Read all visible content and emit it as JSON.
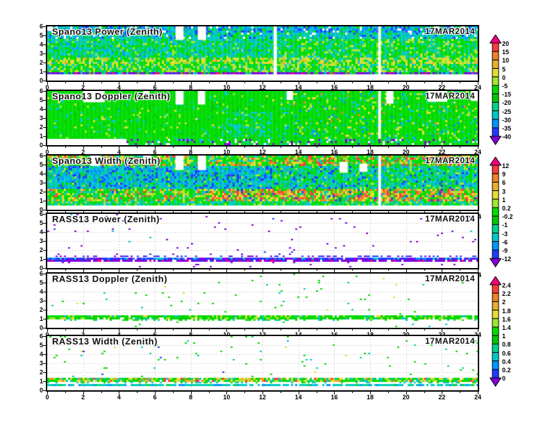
{
  "figure": {
    "background": "#ffffff"
  },
  "palette": {
    "magenta": "#ef0082",
    "red": "#fa3c3c",
    "orange": "#f08228",
    "amber": "#e6af2d",
    "yellow": "#e6dc32",
    "yellowgreen": "#a0e632",
    "green": "#00dc00",
    "green2": "#00c800",
    "aqua": "#00d28c",
    "cyan": "#00c8c8",
    "azure": "#0096ff",
    "blue": "#1e3cff",
    "purple": "#8200dc",
    "white": "#ffffff",
    "grid": "#b4b4b4",
    "axis": "#000000"
  },
  "chart_data": {
    "type": "heatmap",
    "x_axis": {
      "range": [
        0,
        24
      ],
      "tick_step": 2,
      "minor_tick_step": 1,
      "tick_labels": [
        "0",
        "2",
        "4",
        "6",
        "8",
        "10",
        "12",
        "14",
        "16",
        "18",
        "20",
        "22",
        "24"
      ]
    },
    "y_axis": {
      "range": [
        0,
        6
      ],
      "tick_step": 1,
      "tick_labels": [
        "0",
        "1",
        "2",
        "3",
        "4",
        "5",
        "6"
      ]
    },
    "panels": [
      {
        "title": "Spano13 Power (Zenith)",
        "date": "17MAR2014",
        "seed": 11,
        "background": "filled",
        "bands": [
          {
            "y0": 5.25,
            "y1": 6.0,
            "mix": {
              "azure": 0.22,
              "blue": 0.18,
              "cyan": 0.28,
              "green": 0.16,
              "white": 0.08,
              "aqua": 0.08
            }
          },
          {
            "y0": 4.55,
            "y1": 5.25,
            "mix": {
              "cyan": 0.42,
              "aqua": 0.18,
              "green": 0.18,
              "azure": 0.12,
              "blue": 0.05,
              "white": 0.05
            }
          },
          {
            "y0": 2.5,
            "y1": 4.55,
            "mix": {
              "cyan": 0.36,
              "green": 0.34,
              "aqua": 0.18,
              "yellowgreen": 0.06,
              "azure": 0.06
            },
            "xSplit": 13,
            "mixRight": {
              "green": 0.52,
              "cyan": 0.22,
              "aqua": 0.12,
              "yellowgreen": 0.1,
              "yellow": 0.04
            }
          },
          {
            "y0": 1.85,
            "y1": 2.5,
            "mix": {
              "green": 0.34,
              "yellow": 0.26,
              "yellowgreen": 0.22,
              "cyan": 0.12,
              "amber": 0.06
            }
          },
          {
            "y0": 0.85,
            "y1": 1.85,
            "mix": {
              "green": 0.42,
              "cyan": 0.2,
              "yellowgreen": 0.22,
              "yellow": 0.1,
              "aqua": 0.06
            }
          },
          {
            "y0": 0.58,
            "y1": 0.85,
            "mix": {
              "purple": 0.5,
              "magenta": 0.12,
              "blue": 0.12,
              "green": 0.16,
              "cyan": 0.1
            }
          },
          {
            "y0": 0.0,
            "y1": 0.58,
            "mix": {
              "white": 1
            }
          }
        ],
        "white_rects": [
          [
            7.15,
            7.6,
            4.5,
            6
          ],
          [
            8.4,
            8.85,
            4.5,
            6
          ],
          [
            12.62,
            12.8,
            0.58,
            6
          ],
          [
            18.45,
            18.6,
            0.58,
            6
          ],
          [
            0,
            0.3,
            5.5,
            6
          ],
          [
            21.55,
            21.85,
            5.5,
            6
          ],
          [
            23.05,
            23.3,
            5.55,
            6
          ]
        ]
      },
      {
        "title": "Spano13 Doppler (Zenith)",
        "date": "17MAR2014",
        "seed": 22,
        "background": "filled",
        "bands": [
          {
            "y0": 1.0,
            "y1": 3.6,
            "x0": 9.8,
            "x1": 12.6,
            "mix": {
              "green": 0.6,
              "cyan": 0.25,
              "aqua": 0.1,
              "yellowgreen": 0.05
            }
          },
          {
            "y0": 0.7,
            "y1": 6.0,
            "mix": {
              "green": 0.86,
              "green2": 0.06,
              "cyan": 0.04,
              "yellowgreen": 0.02,
              "yellow": 0.01,
              "aqua": 0.01
            },
            "xSplit": 13,
            "mixRight": {
              "green": 0.74,
              "green2": 0.08,
              "cyan": 0.07,
              "yellow": 0.04,
              "yellowgreen": 0.04,
              "orange": 0.01,
              "azure": 0.02
            }
          },
          {
            "y0": 0.0,
            "y1": 0.7,
            "x0": 0,
            "x1": 4.4,
            "mix": {
              "white": 1
            }
          },
          {
            "y0": 0.0,
            "y1": 0.7,
            "mix": {
              "green": 0.72,
              "cyan": 0.1,
              "purple": 0.08,
              "white": 0.1
            }
          }
        ],
        "white_rects": [
          [
            2.0,
            3.2,
            4.75,
            6
          ],
          [
            5.35,
            5.7,
            5.15,
            6
          ],
          [
            7.15,
            7.6,
            4.5,
            6
          ],
          [
            8.4,
            8.8,
            4.5,
            6
          ],
          [
            13.35,
            13.7,
            5.0,
            6
          ],
          [
            18.45,
            18.6,
            0.7,
            6
          ],
          [
            18.9,
            19.3,
            4.6,
            6
          ],
          [
            21.2,
            22.3,
            4.8,
            6
          ],
          [
            23.6,
            24,
            4.9,
            6
          ]
        ]
      },
      {
        "title": "Spano13 Width (Zenith)",
        "date": "17MAR2014",
        "seed": 33,
        "background": "filled",
        "bands": [
          {
            "y0": 4.85,
            "y1": 6.0,
            "mix": {
              "green": 0.42,
              "yellowgreen": 0.14,
              "yellow": 0.1,
              "orange": 0.09,
              "red": 0.08,
              "cyan": 0.09,
              "aqua": 0.04,
              "amber": 0.04
            },
            "xSplit": 12.5,
            "mixRight": {
              "green": 0.4,
              "yellow": 0.1,
              "orange": 0.12,
              "red": 0.14,
              "amber": 0.06,
              "yellowgreen": 0.08,
              "cyan": 0.06,
              "aqua": 0.04
            }
          },
          {
            "y0": 2.3,
            "y1": 4.85,
            "mix": {
              "azure": 0.26,
              "cyan": 0.3,
              "blue": 0.14,
              "aqua": 0.16,
              "green": 0.12,
              "yellowgreen": 0.02
            },
            "xSplit": 12.5,
            "mixRight": {
              "green": 0.3,
              "cyan": 0.26,
              "aqua": 0.2,
              "azure": 0.12,
              "yellowgreen": 0.06,
              "blue": 0.06
            }
          },
          {
            "y0": 0.95,
            "y1": 2.3,
            "mix": {
              "green": 0.4,
              "yellowgreen": 0.14,
              "yellow": 0.12,
              "cyan": 0.12,
              "aqua": 0.07,
              "orange": 0.08,
              "red": 0.05,
              "blue": 0.02
            },
            "xSplit": 9,
            "mixRight": {
              "green": 0.3,
              "yellow": 0.14,
              "orange": 0.15,
              "red": 0.13,
              "amber": 0.07,
              "yellowgreen": 0.09,
              "cyan": 0.08,
              "blue": 0.04
            }
          },
          {
            "y0": 0.4,
            "y1": 0.95,
            "mix": {
              "green": 0.46,
              "cyan": 0.26,
              "aqua": 0.14,
              "yellowgreen": 0.14
            }
          },
          {
            "y0": 0.0,
            "y1": 0.4,
            "mix": {
              "white": 1
            }
          }
        ],
        "white_rects": [
          [
            2.4,
            2.95,
            4.85,
            6
          ],
          [
            5.35,
            5.8,
            5.0,
            6
          ],
          [
            7.15,
            7.6,
            4.4,
            6
          ],
          [
            8.4,
            8.85,
            4.4,
            6
          ],
          [
            16.3,
            16.75,
            4.1,
            5.3
          ],
          [
            17.4,
            17.85,
            4.2,
            5.1
          ],
          [
            18.45,
            18.6,
            0.4,
            6
          ]
        ]
      },
      {
        "title": "RASS13 Power (Zenith)",
        "date": "17MAR2014",
        "seed": 44,
        "background": "white",
        "bands": [
          {
            "y0": 1.35,
            "y1": 6.0,
            "density": 0.018,
            "mix": {
              "purple": 0.85,
              "blue": 0.08,
              "cyan": 0.07
            }
          },
          {
            "y0": 1.2,
            "y1": 1.35,
            "density": 0.3,
            "mix": {
              "purple": 0.6,
              "blue": 0.4
            }
          },
          {
            "y0": 1.02,
            "y1": 1.2,
            "density": 0.97,
            "mix": {
              "blue": 0.45,
              "purple": 0.3,
              "azure": 0.15,
              "cyan": 0.1
            }
          },
          {
            "y0": 0.93,
            "y1": 1.02,
            "density": 0.9,
            "mix": {
              "cyan": 0.55,
              "azure": 0.25,
              "blue": 0.2
            }
          },
          {
            "y0": 0.82,
            "y1": 0.93,
            "density": 0.25,
            "mix": {
              "purple": 0.8,
              "blue": 0.2
            }
          },
          {
            "y0": 0.58,
            "y1": 0.82,
            "density": 0.85,
            "mix": {
              "purple": 0.75,
              "magenta": 0.12,
              "blue": 0.13
            }
          },
          {
            "y0": 0.0,
            "y1": 0.58,
            "density": 0.03,
            "mix": {
              "purple": 1
            }
          }
        ],
        "white_rects": []
      },
      {
        "title": "RASS13 Doppler (Zenith)",
        "date": "17MAR2014",
        "seed": 55,
        "background": "white",
        "bands": [
          {
            "y0": 1.35,
            "y1": 6.0,
            "density": 0.016,
            "mix": {
              "green": 0.6,
              "cyan": 0.2,
              "yellow": 0.12,
              "aqua": 0.08
            }
          },
          {
            "y0": 0.95,
            "y1": 1.35,
            "density": 0.95,
            "mix": {
              "green": 0.62,
              "green2": 0.12,
              "yellowgreen": 0.1,
              "cyan": 0.08,
              "yellow": 0.08
            }
          },
          {
            "y0": 0.8,
            "y1": 0.95,
            "density": 0.3,
            "mix": {
              "green": 0.7,
              "cyan": 0.3
            }
          },
          {
            "y0": 0.58,
            "y1": 0.8,
            "density": 0.8,
            "mix": {
              "green": 0.55,
              "cyan": 0.25,
              "aqua": 0.12,
              "yellowgreen": 0.08
            }
          },
          {
            "y0": 0.0,
            "y1": 0.58,
            "density": 0.012,
            "mix": {
              "green": 0.7,
              "cyan": 0.3
            }
          }
        ],
        "white_rects": []
      },
      {
        "title": "RASS13 Width (Zenith)",
        "date": "17MAR2014",
        "seed": 66,
        "background": "white",
        "bands": [
          {
            "y0": 1.4,
            "y1": 6.0,
            "density": 0.018,
            "mix": {
              "green": 0.62,
              "cyan": 0.18,
              "blue": 0.06,
              "yellow": 0.08,
              "aqua": 0.06
            }
          },
          {
            "y0": 0.95,
            "y1": 1.4,
            "density": 0.93,
            "mix": {
              "green": 0.38,
              "yellow": 0.16,
              "yellowgreen": 0.12,
              "amber": 0.08,
              "orange": 0.07,
              "cyan": 0.09,
              "red": 0.04,
              "aqua": 0.06
            }
          },
          {
            "y0": 0.8,
            "y1": 0.95,
            "density": 0.3,
            "mix": {
              "cyan": 0.5,
              "green": 0.5
            }
          },
          {
            "y0": 0.5,
            "y1": 0.8,
            "density": 0.8,
            "mix": {
              "cyan": 0.55,
              "azure": 0.2,
              "aqua": 0.15,
              "green": 0.1
            }
          },
          {
            "y0": 0.0,
            "y1": 0.5,
            "density": 0.01,
            "mix": {
              "green": 0.6,
              "cyan": 0.4
            }
          }
        ],
        "white_rects": []
      }
    ],
    "colorbars": [
      {
        "name": "spano-power-scale",
        "labels": [
          "20",
          "15",
          "10",
          "5",
          "0",
          "-5",
          "-15",
          "-20",
          "-25",
          "-30",
          "-35",
          "-40"
        ],
        "segment_colors": [
          "red",
          "orange",
          "amber",
          "yellow",
          "yellowgreen",
          "green",
          "green2",
          "aqua",
          "cyan",
          "azure",
          "blue"
        ],
        "arrow_top": "magenta",
        "arrow_bottom": "purple"
      },
      {
        "name": "spano-doppler-width-scale",
        "labels": [
          "12",
          "9",
          "6",
          "3",
          "1",
          "0.2",
          "-0.2",
          "-1",
          "-3",
          "-6",
          "-9",
          "-12"
        ],
        "segment_colors": [
          "red",
          "orange",
          "amber",
          "yellow",
          "yellowgreen",
          "green",
          "green2",
          "aqua",
          "cyan",
          "azure",
          "blue"
        ],
        "arrow_top": "magenta",
        "arrow_bottom": "purple"
      },
      {
        "name": "rass-scale",
        "labels": [
          "2.4",
          "2.2",
          "2",
          "1.8",
          "1.6",
          "1.4",
          "1",
          "0.8",
          "0.6",
          "0.4",
          "0.2",
          "0"
        ],
        "segment_colors": [
          "red",
          "orange",
          "amber",
          "yellow",
          "yellowgreen",
          "green",
          "green2",
          "aqua",
          "cyan",
          "azure",
          "blue"
        ],
        "arrow_top": "magenta",
        "arrow_bottom": "purple"
      }
    ]
  }
}
